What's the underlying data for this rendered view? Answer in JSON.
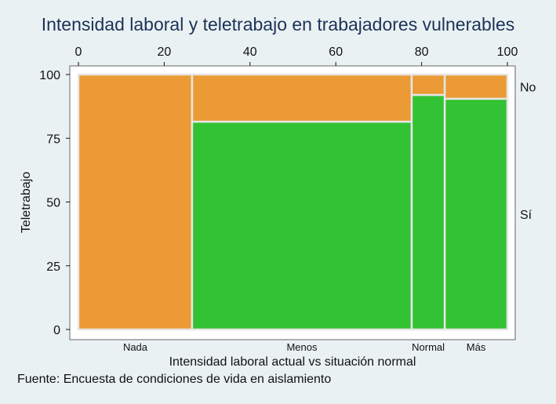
{
  "chart_data": {
    "type": "mosaic",
    "title": "Intensidad laboral y teletrabajo en trabajadores vulnerables",
    "xlabel": "Intensidad laboral actual vs situación normal",
    "ylabel": "Teletrabajo",
    "xlim": [
      0,
      100
    ],
    "ylim": [
      0,
      100
    ],
    "x_ticks": [
      0,
      20,
      40,
      60,
      80,
      100
    ],
    "y_ticks": [
      0,
      25,
      50,
      75,
      100
    ],
    "categories": [
      "Nada",
      "Menos",
      "Normal",
      "Más"
    ],
    "widths": [
      26.5,
      51.2,
      7.7,
      14.6
    ],
    "series": [
      {
        "name": "Sí",
        "values": [
          0,
          81.5,
          92,
          90.5
        ],
        "color": "#33c233"
      },
      {
        "name": "No",
        "values": [
          100,
          18.5,
          8,
          9.5
        ],
        "color": "#eb9a35"
      }
    ],
    "right_labels": [
      "No",
      "Sí"
    ],
    "source": "Fuente: Encuesta de condiciones de vida en aislamiento"
  }
}
